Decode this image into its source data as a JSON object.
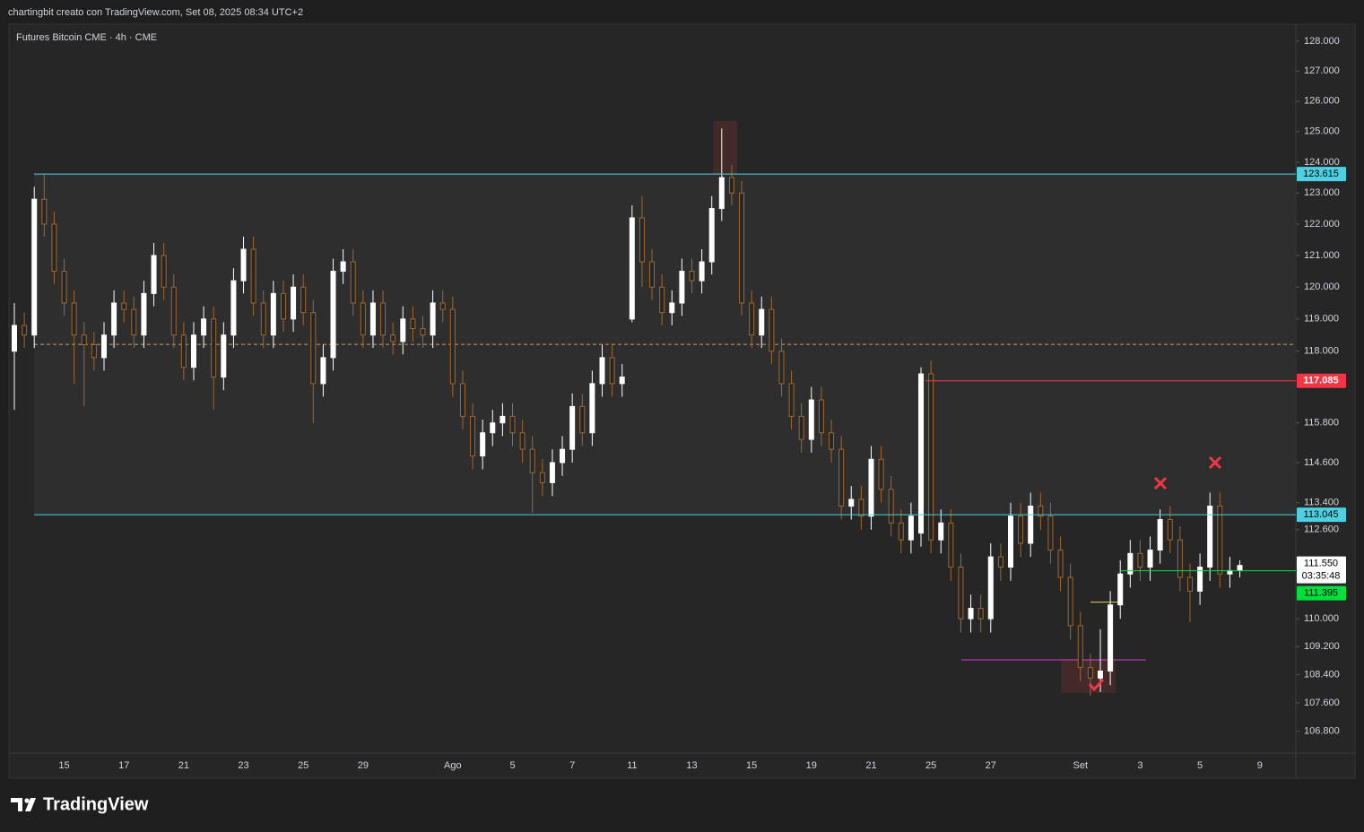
{
  "header": "chartingbit creato con TradingView.com, Set 08, 2025 08:34 UTC+2",
  "brand": "TradingView",
  "chart_data": {
    "type": "candlestick",
    "title": "Futures Bitcoin CME · 4h · CME",
    "log_scale": true,
    "up_color": "#ffffff",
    "down_color": "#a0672e",
    "ylim": [
      106190,
      128570
    ],
    "yticks": [
      {
        "value": 128000,
        "label": "128.000"
      },
      {
        "value": 127000,
        "label": "127.000"
      },
      {
        "value": 126000,
        "label": "126.000"
      },
      {
        "value": 125000,
        "label": "125.000"
      },
      {
        "value": 124000,
        "label": "124.000"
      },
      {
        "value": 123000,
        "label": "123.000"
      },
      {
        "value": 122000,
        "label": "122.000"
      },
      {
        "value": 121000,
        "label": "121.000"
      },
      {
        "value": 120000,
        "label": "120.000"
      },
      {
        "value": 119000,
        "label": "119.000"
      },
      {
        "value": 118000,
        "label": "118.000"
      },
      {
        "value": 115800,
        "label": "115.800"
      },
      {
        "value": 114600,
        "label": "114.600"
      },
      {
        "value": 113400,
        "label": "113.400"
      },
      {
        "value": 112600,
        "label": "112.600"
      },
      {
        "value": 110000,
        "label": "110.000"
      },
      {
        "value": 109200,
        "label": "109.200"
      },
      {
        "value": 108400,
        "label": "108.400"
      },
      {
        "value": 107600,
        "label": "107.600"
      },
      {
        "value": 106800,
        "label": "106.800"
      }
    ],
    "categories": [
      null,
      null,
      null,
      null,
      null,
      "15",
      null,
      null,
      null,
      null,
      null,
      "17",
      null,
      null,
      null,
      null,
      null,
      "21",
      null,
      null,
      null,
      null,
      null,
      "23",
      null,
      null,
      null,
      null,
      null,
      "25",
      null,
      null,
      null,
      null,
      null,
      "29",
      null,
      null,
      null,
      null,
      null,
      null,
      null,
      null,
      "Ago",
      null,
      null,
      null,
      null,
      null,
      "5",
      null,
      null,
      null,
      null,
      null,
      "7",
      null,
      null,
      null,
      null,
      null,
      "11",
      null,
      null,
      null,
      null,
      null,
      "13",
      null,
      null,
      null,
      null,
      null,
      "15",
      null,
      null,
      null,
      null,
      null,
      "19",
      null,
      null,
      null,
      null,
      null,
      "21",
      null,
      null,
      null,
      null,
      null,
      "25",
      null,
      null,
      null,
      null,
      null,
      "27",
      null,
      null,
      null,
      null,
      null,
      null,
      null,
      null,
      "Set",
      null,
      null,
      null,
      null,
      null,
      "3",
      null,
      null,
      null,
      null,
      null,
      "5",
      null,
      null,
      null,
      null,
      null,
      "9"
    ],
    "ohlc": [
      [
        118000,
        119500,
        116200,
        118800
      ],
      [
        118800,
        119200,
        118100,
        118500
      ],
      [
        118500,
        123200,
        118100,
        122800
      ],
      [
        122800,
        123600,
        121600,
        122000
      ],
      [
        122000,
        122400,
        120100,
        120500
      ],
      [
        120500,
        120900,
        119100,
        119500
      ],
      [
        119500,
        119900,
        117000,
        118500
      ],
      [
        118500,
        118900,
        116300,
        118200
      ],
      [
        118200,
        118600,
        117400,
        117800
      ],
      [
        117800,
        118900,
        117400,
        118500
      ],
      [
        118500,
        119900,
        118100,
        119500
      ],
      [
        119500,
        119900,
        118900,
        119300
      ],
      [
        119300,
        119700,
        118100,
        118500
      ],
      [
        118500,
        120200,
        118100,
        119800
      ],
      [
        119800,
        121400,
        119400,
        121000
      ],
      [
        121000,
        121400,
        119600,
        120000
      ],
      [
        120000,
        120400,
        118100,
        118500
      ],
      [
        118500,
        118900,
        117100,
        117500
      ],
      [
        117500,
        118900,
        117100,
        118500
      ],
      [
        118500,
        119400,
        118100,
        119000
      ],
      [
        119000,
        119400,
        116200,
        117200
      ],
      [
        117200,
        118900,
        116800,
        118500
      ],
      [
        118500,
        120600,
        118100,
        120200
      ],
      [
        120200,
        121600,
        119800,
        121200
      ],
      [
        121200,
        121600,
        119100,
        119500
      ],
      [
        119500,
        119900,
        118100,
        118500
      ],
      [
        118500,
        120200,
        118100,
        119800
      ],
      [
        119800,
        120200,
        118600,
        119000
      ],
      [
        119000,
        120400,
        118600,
        120000
      ],
      [
        120000,
        120400,
        118800,
        119200
      ],
      [
        119200,
        119600,
        115800,
        117000
      ],
      [
        117000,
        118200,
        116600,
        117800
      ],
      [
        117800,
        120900,
        117400,
        120500
      ],
      [
        120500,
        121200,
        120100,
        120800
      ],
      [
        120800,
        121200,
        119100,
        119500
      ],
      [
        119500,
        119900,
        118100,
        118500
      ],
      [
        118500,
        119900,
        118100,
        119500
      ],
      [
        119500,
        119900,
        118100,
        118500
      ],
      [
        118500,
        118900,
        117900,
        118300
      ],
      [
        118300,
        119400,
        117900,
        119000
      ],
      [
        119000,
        119400,
        118300,
        118700
      ],
      [
        118700,
        119100,
        118100,
        118500
      ],
      [
        118500,
        119900,
        118100,
        119500
      ],
      [
        119500,
        119900,
        118900,
        119300
      ],
      [
        119300,
        119700,
        116600,
        117000
      ],
      [
        117000,
        117400,
        115600,
        116000
      ],
      [
        116000,
        116400,
        114400,
        114800
      ],
      [
        114800,
        115900,
        114400,
        115500
      ],
      [
        115500,
        116200,
        115100,
        115800
      ],
      [
        115800,
        116400,
        115400,
        116000
      ],
      [
        116000,
        116400,
        115100,
        115500
      ],
      [
        115500,
        115900,
        114600,
        115000
      ],
      [
        115000,
        115400,
        113100,
        114300
      ],
      [
        114300,
        114700,
        113600,
        114000
      ],
      [
        114000,
        115000,
        113600,
        114600
      ],
      [
        114600,
        115400,
        114200,
        115000
      ],
      [
        115000,
        116700,
        114600,
        116300
      ],
      [
        116300,
        116700,
        115100,
        115500
      ],
      [
        115500,
        117400,
        115100,
        117000
      ],
      [
        117000,
        118200,
        116600,
        117800
      ],
      [
        117800,
        118200,
        116600,
        117000
      ],
      [
        117000,
        117600,
        116600,
        117200
      ],
      [
        119000,
        122600,
        118900,
        122200
      ],
      [
        122200,
        122900,
        120000,
        120800
      ],
      [
        120800,
        121200,
        119600,
        120000
      ],
      [
        120000,
        120400,
        118800,
        119200
      ],
      [
        119200,
        119900,
        118800,
        119500
      ],
      [
        119500,
        120900,
        119100,
        120500
      ],
      [
        120500,
        120900,
        119800,
        120200
      ],
      [
        120200,
        121200,
        119800,
        120800
      ],
      [
        120800,
        122900,
        120400,
        122500
      ],
      [
        122500,
        125100,
        122100,
        123500
      ],
      [
        123500,
        123900,
        122600,
        123000
      ],
      [
        123000,
        123400,
        119100,
        119500
      ],
      [
        119500,
        119900,
        118100,
        118500
      ],
      [
        118500,
        119700,
        118100,
        119300
      ],
      [
        119300,
        119700,
        117600,
        118000
      ],
      [
        118000,
        118400,
        116600,
        117000
      ],
      [
        117000,
        117400,
        115600,
        116000
      ],
      [
        116000,
        116400,
        114900,
        115300
      ],
      [
        115300,
        116900,
        114900,
        116500
      ],
      [
        116500,
        116900,
        115100,
        115500
      ],
      [
        115500,
        115900,
        114600,
        115000
      ],
      [
        115000,
        115400,
        112900,
        113300
      ],
      [
        113300,
        113900,
        112900,
        113500
      ],
      [
        113500,
        113900,
        112600,
        113000
      ],
      [
        113000,
        115100,
        112600,
        114700
      ],
      [
        114700,
        115100,
        113400,
        113800
      ],
      [
        113800,
        114200,
        112400,
        112800
      ],
      [
        112800,
        113200,
        111900,
        112300
      ],
      [
        112300,
        113400,
        111900,
        113000
      ],
      [
        112500,
        117500,
        112100,
        117300
      ],
      [
        117300,
        117700,
        111900,
        112300
      ],
      [
        112300,
        113200,
        111900,
        112800
      ],
      [
        112800,
        113200,
        111100,
        111500
      ],
      [
        111500,
        111900,
        109600,
        110000
      ],
      [
        110000,
        110700,
        109600,
        110300
      ],
      [
        110300,
        110700,
        109600,
        110000
      ],
      [
        110000,
        112200,
        109600,
        111800
      ],
      [
        111800,
        112200,
        111100,
        111500
      ],
      [
        111500,
        113400,
        111100,
        113000
      ],
      [
        113000,
        113400,
        111800,
        112200
      ],
      [
        112200,
        113700,
        111800,
        113300
      ],
      [
        113300,
        113700,
        112600,
        113000
      ],
      [
        113000,
        113400,
        111600,
        112000
      ],
      [
        112000,
        112400,
        110800,
        111200
      ],
      [
        111200,
        111600,
        109400,
        109800
      ],
      [
        109800,
        110200,
        108200,
        108600
      ],
      [
        108600,
        109000,
        107800,
        108300
      ],
      [
        108300,
        109700,
        107900,
        108500
      ],
      [
        108500,
        110800,
        108100,
        110400
      ],
      [
        110400,
        111700,
        110000,
        111300
      ],
      [
        111300,
        112300,
        110900,
        111900
      ],
      [
        111900,
        112300,
        111100,
        111500
      ],
      [
        111500,
        112400,
        111100,
        112000
      ],
      [
        112000,
        113200,
        111600,
        112900
      ],
      [
        112900,
        113300,
        111900,
        112300
      ],
      [
        112300,
        112700,
        110800,
        111200
      ],
      [
        111200,
        111600,
        109900,
        110800
      ],
      [
        110800,
        111900,
        110400,
        111500
      ],
      [
        111500,
        113700,
        111100,
        113300
      ],
      [
        113300,
        113700,
        110900,
        111300
      ],
      [
        111300,
        111800,
        110900,
        111400
      ],
      [
        111400,
        111700,
        111200,
        111550
      ],
      null,
      null
    ],
    "levels": [
      {
        "value": 123615,
        "label": "123.615",
        "color": "#4dd0e1"
      },
      {
        "value": 113045,
        "label": "113.045",
        "color": "#4dd0e1"
      },
      {
        "value": 117085,
        "label": "117.085",
        "color": "#f23645"
      },
      {
        "value": 111550,
        "label": "111.550",
        "color": "#ffffff",
        "countdown": "03:35:48"
      },
      {
        "value": 111395,
        "label": "111.395",
        "color": "#00e03c"
      }
    ],
    "lines": [
      {
        "value": 118210,
        "color": "#c8a06a",
        "dashed": true
      },
      {
        "value": 110480,
        "color": "#e6d44a",
        "dashed": false
      },
      {
        "value": 108820,
        "color": "#d33fd3",
        "dashed": false
      }
    ]
  }
}
